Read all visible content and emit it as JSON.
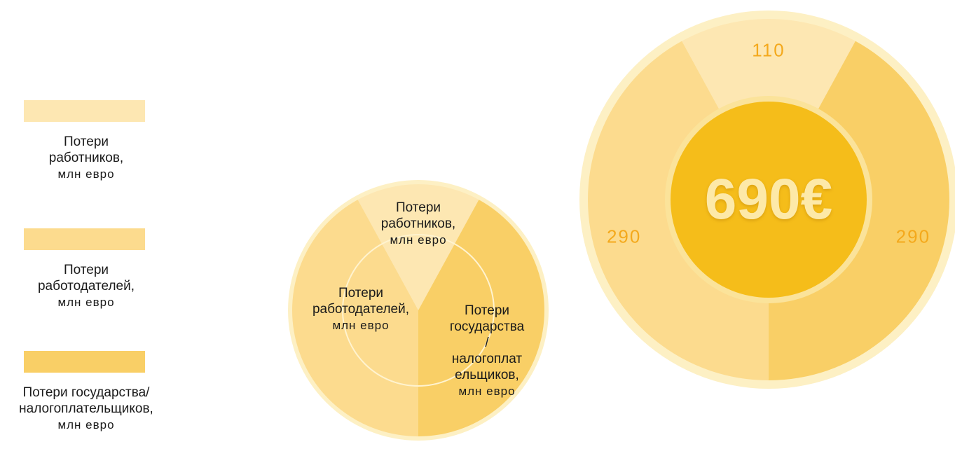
{
  "chart_data": {
    "type": "pie",
    "categories": [
      "Потери работников,",
      "Потери работодателей,",
      "Потери государства/налогоплательщиков,"
    ],
    "unit": "млн евро",
    "values": [
      110,
      290,
      290
    ],
    "colors": [
      "#fde7b2",
      "#fcdb8e",
      "#f9cf66"
    ],
    "center_value": 690,
    "center_unit": "€"
  }
}
